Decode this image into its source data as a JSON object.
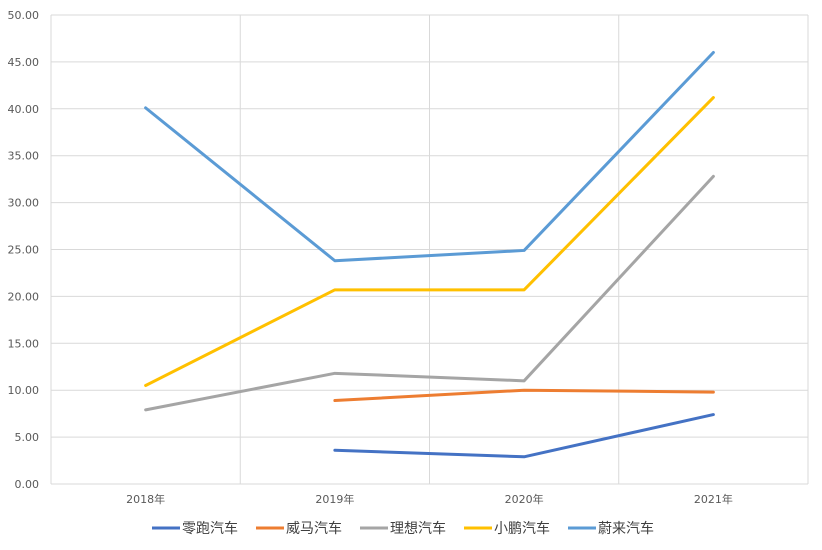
{
  "chart_data": {
    "type": "line",
    "categories": [
      "2018年",
      "2019年",
      "2020年",
      "2021年"
    ],
    "ylim": [
      0,
      50
    ],
    "y_ticks": [
      "0.00",
      "5.00",
      "10.00",
      "15.00",
      "20.00",
      "25.00",
      "30.00",
      "35.00",
      "40.00",
      "45.00",
      "50.00"
    ],
    "grid": true,
    "legend_position": "bottom",
    "series": [
      {
        "name": "零跑汽车",
        "color": "#4472C4",
        "values": [
          null,
          3.6,
          2.9,
          7.4
        ]
      },
      {
        "name": "威马汽车",
        "color": "#ED7D31",
        "values": [
          null,
          8.9,
          10.0,
          9.8
        ]
      },
      {
        "name": "理想汽车",
        "color": "#A5A5A5",
        "values": [
          7.9,
          11.8,
          11.0,
          32.8
        ]
      },
      {
        "name": "小鹏汽车",
        "color": "#FFC000",
        "values": [
          10.5,
          20.7,
          20.7,
          41.2
        ]
      },
      {
        "name": "蔚来汽车",
        "color": "#5B9BD5",
        "values": [
          40.1,
          23.8,
          24.9,
          46.0
        ]
      }
    ]
  }
}
